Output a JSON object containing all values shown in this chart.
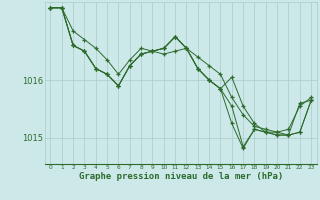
{
  "background_color": "#cce8e8",
  "grid_color": "#aacccc",
  "line_color": "#2d6b2d",
  "marker_color": "#2d6b2d",
  "xlabel": "Graphe pression niveau de la mer (hPa)",
  "xlabel_fontsize": 6.5,
  "xlim": [
    -0.5,
    23.5
  ],
  "ylim": [
    1014.55,
    1017.35
  ],
  "yticks": [
    1015,
    1016
  ],
  "ytick_fontsize": 6,
  "xticks": [
    0,
    1,
    2,
    3,
    4,
    5,
    6,
    7,
    8,
    9,
    10,
    11,
    12,
    13,
    14,
    15,
    16,
    17,
    18,
    19,
    20,
    21,
    22,
    23
  ],
  "xtick_fontsize": 4.2,
  "series": [
    [
      1017.25,
      1017.25,
      1016.85,
      1016.7,
      1016.55,
      1016.35,
      1016.1,
      1016.35,
      1016.55,
      1016.5,
      1016.45,
      1016.5,
      1016.55,
      1016.4,
      1016.25,
      1016.1,
      1015.7,
      1015.4,
      1015.2,
      1015.15,
      1015.1,
      1015.15,
      1015.55,
      1015.7
    ],
    [
      1017.25,
      1017.25,
      1016.6,
      1016.5,
      1016.2,
      1016.1,
      1015.9,
      1016.25,
      1016.45,
      1016.5,
      1016.55,
      1016.75,
      1016.55,
      1016.2,
      1016.0,
      1015.85,
      1016.05,
      1015.55,
      1015.25,
      1015.1,
      1015.1,
      1015.05,
      1015.6,
      1015.65
    ],
    [
      1017.25,
      1017.25,
      1016.6,
      1016.5,
      1016.2,
      1016.1,
      1015.9,
      1016.25,
      1016.45,
      1016.5,
      1016.55,
      1016.75,
      1016.55,
      1016.2,
      1016.0,
      1015.85,
      1015.55,
      1014.85,
      1015.15,
      1015.1,
      1015.05,
      1015.05,
      1015.1,
      1015.65
    ],
    [
      1017.25,
      1017.25,
      1016.6,
      1016.5,
      1016.2,
      1016.1,
      1015.9,
      1016.25,
      1016.45,
      1016.5,
      1016.55,
      1016.75,
      1016.55,
      1016.2,
      1016.0,
      1015.85,
      1015.25,
      1014.82,
      1015.15,
      1015.1,
      1015.05,
      1015.05,
      1015.1,
      1015.65
    ]
  ]
}
